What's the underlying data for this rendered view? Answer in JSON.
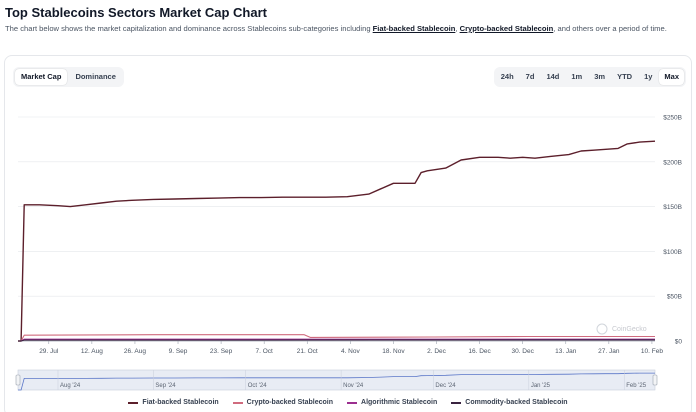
{
  "page": {
    "title": "Top Stablecoins Sectors Market Cap Chart",
    "desc_before": "The chart below shows the market capitalization and dominance across Stablecoins sub-categories including ",
    "link1": "Fiat-backed Stablecoin",
    "desc_mid": ", ",
    "link2": "Crypto-backed Stablecoin",
    "desc_after": ", and others over a period of time."
  },
  "view_tabs": [
    {
      "label": "Market Cap",
      "active": true
    },
    {
      "label": "Dominance",
      "active": false
    }
  ],
  "range_tabs": [
    {
      "label": "24h",
      "active": false
    },
    {
      "label": "7d",
      "active": false
    },
    {
      "label": "14d",
      "active": false
    },
    {
      "label": "1m",
      "active": false
    },
    {
      "label": "3m",
      "active": false
    },
    {
      "label": "YTD",
      "active": false
    },
    {
      "label": "1y",
      "active": false
    },
    {
      "label": "Max",
      "active": true
    }
  ],
  "watermark": "CoinGecko",
  "chart_data": {
    "type": "line",
    "title": "",
    "xlabel": "",
    "ylabel": "",
    "ylim": [
      0,
      250
    ],
    "y_ticks": [
      0,
      50,
      100,
      150,
      200,
      250
    ],
    "y_tick_labels": [
      "$0",
      "$50B",
      "$100B",
      "$150B",
      "$200B",
      "$250B"
    ],
    "x_range": [
      "2024-07-19",
      "2025-02-11"
    ],
    "x_ticks": [
      {
        "date": "2024-07-29",
        "label": "29. Jul"
      },
      {
        "date": "2024-08-12",
        "label": "12. Aug"
      },
      {
        "date": "2024-08-26",
        "label": "26. Aug"
      },
      {
        "date": "2024-09-09",
        "label": "9. Sep"
      },
      {
        "date": "2024-09-23",
        "label": "23. Sep"
      },
      {
        "date": "2024-10-07",
        "label": "7. Oct"
      },
      {
        "date": "2024-10-21",
        "label": "21. Oct"
      },
      {
        "date": "2024-11-04",
        "label": "4. Nov"
      },
      {
        "date": "2024-11-18",
        "label": "18. Nov"
      },
      {
        "date": "2024-12-02",
        "label": "2. Dec"
      },
      {
        "date": "2024-12-16",
        "label": "16. Dec"
      },
      {
        "date": "2024-12-30",
        "label": "30. Dec"
      },
      {
        "date": "2025-01-13",
        "label": "13. Jan"
      },
      {
        "date": "2025-01-27",
        "label": "27. Jan"
      },
      {
        "date": "2025-02-10",
        "label": "10. Feb"
      }
    ],
    "grid": true,
    "legend_position": "bottom",
    "series": [
      {
        "name": "Fiat-backed Stablecoin",
        "color": "#5c1f2b",
        "points": [
          [
            "2024-07-19",
            0
          ],
          [
            "2024-07-20",
            0
          ],
          [
            "2024-07-21",
            152
          ],
          [
            "2024-07-26",
            152
          ],
          [
            "2024-08-01",
            151
          ],
          [
            "2024-08-05",
            150
          ],
          [
            "2024-08-10",
            152
          ],
          [
            "2024-08-15",
            154
          ],
          [
            "2024-08-20",
            156
          ],
          [
            "2024-08-25",
            157
          ],
          [
            "2024-09-01",
            158
          ],
          [
            "2024-09-08",
            158.5
          ],
          [
            "2024-09-15",
            159
          ],
          [
            "2024-09-22",
            159.5
          ],
          [
            "2024-09-29",
            160
          ],
          [
            "2024-10-06",
            160
          ],
          [
            "2024-10-13",
            160.5
          ],
          [
            "2024-10-20",
            160.5
          ],
          [
            "2024-10-27",
            160.5
          ],
          [
            "2024-11-03",
            161
          ],
          [
            "2024-11-10",
            164
          ],
          [
            "2024-11-14",
            170
          ],
          [
            "2024-11-18",
            176
          ],
          [
            "2024-11-22",
            176
          ],
          [
            "2024-11-25",
            176
          ],
          [
            "2024-11-27",
            188
          ],
          [
            "2024-11-29",
            190
          ],
          [
            "2024-12-05",
            193
          ],
          [
            "2024-12-10",
            202
          ],
          [
            "2024-12-16",
            205
          ],
          [
            "2024-12-22",
            205
          ],
          [
            "2024-12-26",
            204
          ],
          [
            "2024-12-30",
            205
          ],
          [
            "2025-01-03",
            204
          ],
          [
            "2025-01-08",
            206
          ],
          [
            "2025-01-14",
            208
          ],
          [
            "2025-01-18",
            212
          ],
          [
            "2025-01-22",
            213
          ],
          [
            "2025-01-26",
            214
          ],
          [
            "2025-01-30",
            215
          ],
          [
            "2025-02-02",
            220
          ],
          [
            "2025-02-06",
            222
          ],
          [
            "2025-02-11",
            223
          ]
        ]
      },
      {
        "name": "Crypto-backed Stablecoin",
        "color": "#d06b7e",
        "points": [
          [
            "2024-07-19",
            0
          ],
          [
            "2024-07-20",
            0
          ],
          [
            "2024-07-21",
            6.5
          ],
          [
            "2024-09-01",
            7
          ],
          [
            "2024-10-14",
            7
          ],
          [
            "2024-10-20",
            7
          ],
          [
            "2024-10-22",
            4
          ],
          [
            "2024-12-01",
            4.5
          ],
          [
            "2025-01-01",
            5
          ],
          [
            "2025-02-11",
            5
          ]
        ]
      },
      {
        "name": "Algorithmic Stablecoin",
        "color": "#9b2f8f",
        "points": [
          [
            "2024-07-19",
            0
          ],
          [
            "2024-07-20",
            0
          ],
          [
            "2024-07-21",
            2
          ],
          [
            "2025-02-11",
            2
          ]
        ]
      },
      {
        "name": "Commodity-backed Stablecoin",
        "color": "#3a2340",
        "points": [
          [
            "2024-07-19",
            0
          ],
          [
            "2024-07-20",
            0
          ],
          [
            "2024-07-21",
            1
          ],
          [
            "2025-02-11",
            1.2
          ]
        ]
      }
    ],
    "navigator": {
      "x_range": [
        "2024-07-19",
        "2025-02-11"
      ],
      "ticks": [
        {
          "date": "2024-08-01",
          "label": "Aug '24"
        },
        {
          "date": "2024-09-01",
          "label": "Sep '24"
        },
        {
          "date": "2024-10-01",
          "label": "Oct '24"
        },
        {
          "date": "2024-11-01",
          "label": "Nov '24"
        },
        {
          "date": "2024-12-01",
          "label": "Dec '24"
        },
        {
          "date": "2025-01-01",
          "label": "Jan '25"
        },
        {
          "date": "2025-02-01",
          "label": "Feb '25"
        }
      ],
      "selection": "full"
    }
  }
}
